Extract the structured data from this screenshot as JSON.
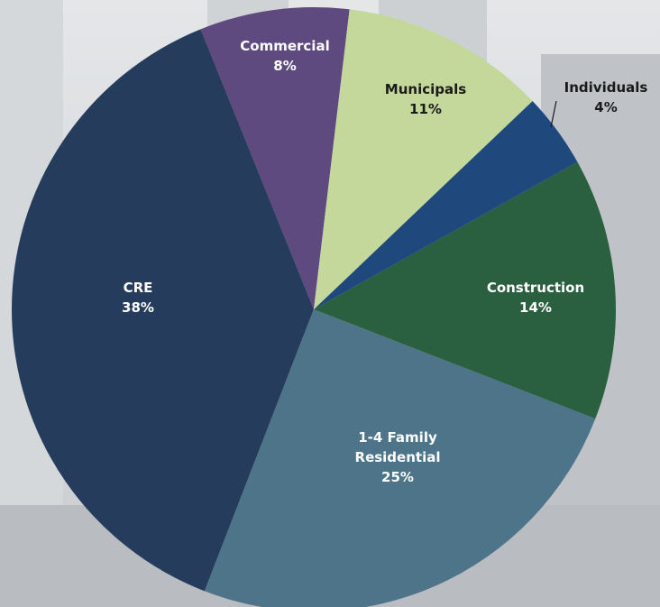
{
  "chart_data": {
    "type": "pie",
    "categories": [
      "Municipals",
      "Individuals",
      "Construction",
      "1-4 Family Residential",
      "CRE",
      "Commercial"
    ],
    "values": [
      11,
      4,
      14,
      25,
      38,
      8
    ],
    "value_labels": [
      "11%",
      "4%",
      "14%",
      "25%",
      "38%",
      "8%"
    ],
    "colors": [
      "#c5d89b",
      "#1f497d",
      "#2a6040",
      "#4e7489",
      "#263c5c",
      "#5e4a7e"
    ]
  }
}
